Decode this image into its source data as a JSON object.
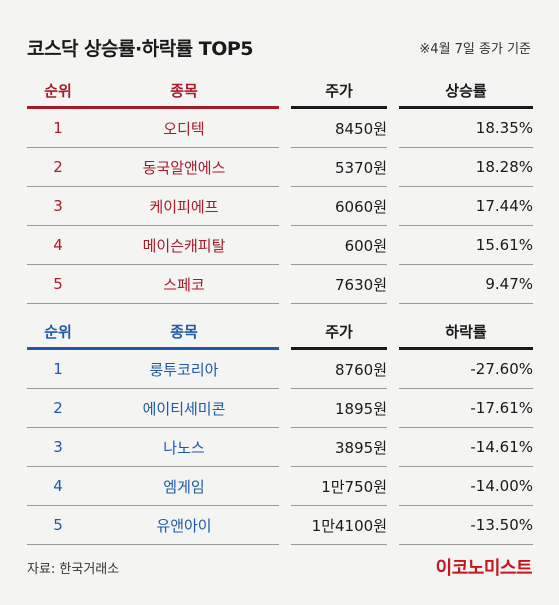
{
  "title": "코스닥 상승률·하락률 TOP5",
  "note": "※4월 7일 종가 기준",
  "gainers": {
    "headers": {
      "rank": "순위",
      "name": "종목",
      "price": "주가",
      "rate": "상승률"
    },
    "rows": [
      {
        "rank": "1",
        "name": "오디텍",
        "price": "8450원",
        "rate": "18.35%"
      },
      {
        "rank": "2",
        "name": "동국알앤에스",
        "price": "5370원",
        "rate": "18.28%"
      },
      {
        "rank": "3",
        "name": "케이피에프",
        "price": "6060원",
        "rate": "17.44%"
      },
      {
        "rank": "4",
        "name": "메이슨캐피탈",
        "price": "600원",
        "rate": "15.61%"
      },
      {
        "rank": "5",
        "name": "스페코",
        "price": "7630원",
        "rate": "9.47%"
      }
    ]
  },
  "losers": {
    "headers": {
      "rank": "순위",
      "name": "종목",
      "price": "주가",
      "rate": "하락률"
    },
    "rows": [
      {
        "rank": "1",
        "name": "룽투코리아",
        "price": "8760원",
        "rate": "-27.60%"
      },
      {
        "rank": "2",
        "name": "에이티세미콘",
        "price": "1895원",
        "rate": "-17.61%"
      },
      {
        "rank": "3",
        "name": "나노스",
        "price": "3895원",
        "rate": "-14.61%"
      },
      {
        "rank": "4",
        "name": "엠게임",
        "price": "1만750원",
        "rate": "-14.00%"
      },
      {
        "rank": "5",
        "name": "유앤아이",
        "price": "1만4100원",
        "rate": "-13.50%"
      }
    ]
  },
  "source": "자료: 한국거래소",
  "logo": "이코노미스트",
  "colors": {
    "gainer_accent": "#a61c2b",
    "loser_accent": "#1e5aa8",
    "logo": "#c4161c",
    "background": "#f4f4f2"
  }
}
